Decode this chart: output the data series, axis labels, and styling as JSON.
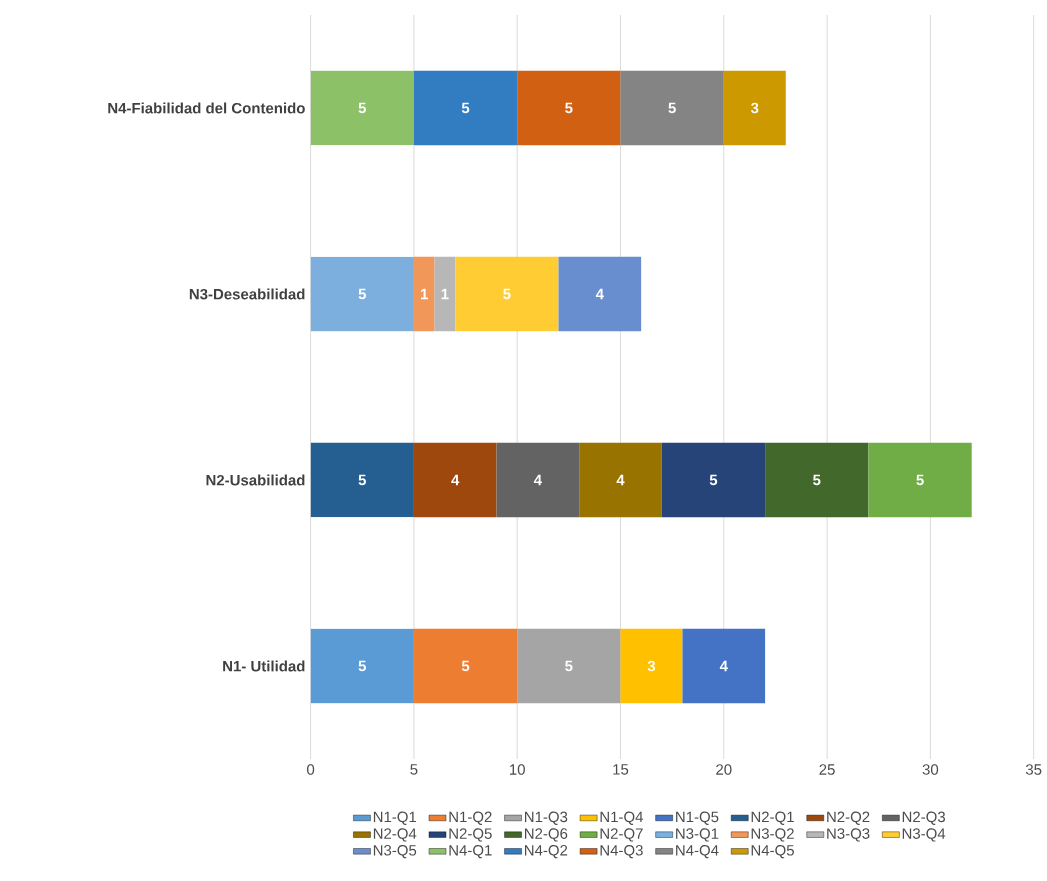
{
  "chart_data": {
    "type": "bar",
    "orientation": "horizontal",
    "stacked": true,
    "data_labels": true,
    "grid": "x",
    "legend": "bottom",
    "categories": [
      "N4-Fiabilidad del Contenido",
      "N3-Deseabilidad",
      "N2-Usabilidad",
      "N1- Utilidad"
    ],
    "xlim": [
      0,
      35
    ],
    "xticks": [
      0,
      5,
      10,
      15,
      20,
      25,
      30,
      35
    ],
    "series": [
      {
        "name": "N1-Q1",
        "color": "#5b9bd5",
        "values": [
          null,
          null,
          null,
          5
        ]
      },
      {
        "name": "N1-Q2",
        "color": "#ed7d31",
        "values": [
          null,
          null,
          null,
          5
        ]
      },
      {
        "name": "N1-Q3",
        "color": "#a5a5a5",
        "values": [
          null,
          null,
          null,
          5
        ]
      },
      {
        "name": "N1-Q4",
        "color": "#ffc000",
        "values": [
          null,
          null,
          null,
          3
        ]
      },
      {
        "name": "N1-Q5",
        "color": "#4472c4",
        "values": [
          null,
          null,
          null,
          4
        ]
      },
      {
        "name": "N2-Q1",
        "color": "#255e91",
        "values": [
          null,
          null,
          5,
          null
        ]
      },
      {
        "name": "N2-Q2",
        "color": "#9e480e",
        "values": [
          null,
          null,
          4,
          null
        ]
      },
      {
        "name": "N2-Q3",
        "color": "#636363",
        "values": [
          null,
          null,
          4,
          null
        ]
      },
      {
        "name": "N2-Q4",
        "color": "#997300",
        "values": [
          null,
          null,
          4,
          null
        ]
      },
      {
        "name": "N2-Q5",
        "color": "#264478",
        "values": [
          null,
          null,
          5,
          null
        ]
      },
      {
        "name": "N2-Q6",
        "color": "#43682b",
        "values": [
          null,
          null,
          5,
          null
        ]
      },
      {
        "name": "N2-Q7",
        "color": "#70ad47",
        "values": [
          null,
          null,
          5,
          null
        ]
      },
      {
        "name": "N3-Q1",
        "color": "#7cafdd",
        "values": [
          null,
          5,
          null,
          null
        ]
      },
      {
        "name": "N3-Q2",
        "color": "#f1975a",
        "values": [
          null,
          1,
          null,
          null
        ]
      },
      {
        "name": "N3-Q3",
        "color": "#b7b7b7",
        "values": [
          null,
          1,
          null,
          null
        ]
      },
      {
        "name": "N3-Q4",
        "color": "#ffcd33",
        "values": [
          null,
          5,
          null,
          null
        ]
      },
      {
        "name": "N3-Q5",
        "color": "#698ed0",
        "values": [
          null,
          4,
          null,
          null
        ]
      },
      {
        "name": "N4-Q1",
        "color": "#8cc168",
        "values": [
          5,
          null,
          null,
          null
        ]
      },
      {
        "name": "N4-Q2",
        "color": "#327dc2",
        "values": [
          5,
          null,
          null,
          null
        ]
      },
      {
        "name": "N4-Q3",
        "color": "#d26012",
        "values": [
          5,
          null,
          null,
          null
        ]
      },
      {
        "name": "N4-Q4",
        "color": "#848484",
        "values": [
          5,
          null,
          null,
          null
        ]
      },
      {
        "name": "N4-Q5",
        "color": "#cc9a00",
        "values": [
          3,
          null,
          null,
          null
        ]
      }
    ]
  }
}
